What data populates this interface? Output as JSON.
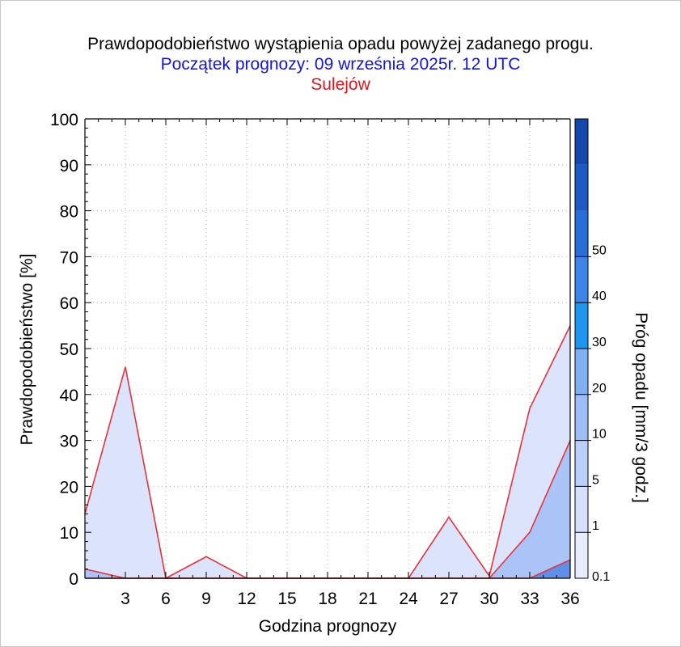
{
  "chart_data": {
    "type": "area",
    "title": "Prawdopodobieństwo wystąpienia opadu powyżej zadanego progu.",
    "subtitle": "Początek prognozy: 09 września 2025r. 12 UTC",
    "location": "Sulejów",
    "xlabel": "Godzina prognozy",
    "ylabel": "Prawdopodobieństwo [%]",
    "colorbar_label": "Próg opadu [mm/3 godz.]",
    "xlim": [
      0,
      36
    ],
    "ylim": [
      0,
      100
    ],
    "x_ticks": [
      3,
      6,
      9,
      12,
      15,
      18,
      21,
      24,
      27,
      30,
      33,
      36
    ],
    "y_ticks": [
      0,
      10,
      20,
      30,
      40,
      50,
      60,
      70,
      80,
      90,
      100
    ],
    "colorbar_ticks": [
      "0.1",
      "1",
      "5",
      "10",
      "20",
      "30",
      "40",
      "50"
    ],
    "colorbar_colors": [
      "#e8ecfc",
      "#d6dffb",
      "#bacffa",
      "#9dbef7",
      "#7fb0f2",
      "#1e96f0",
      "#3c84e8",
      "#286ed7",
      "#1e5ac3",
      "#1448ab"
    ],
    "x": [
      0,
      3,
      6,
      9,
      12,
      15,
      18,
      21,
      24,
      27,
      30,
      33,
      36
    ],
    "series": [
      {
        "threshold": "0.1",
        "color": "#dce4fb",
        "values": [
          14,
          46,
          0,
          4.7,
          0,
          0,
          0,
          0,
          0,
          13.3,
          0.5,
          37,
          55
        ]
      },
      {
        "threshold": "1",
        "color": "#aac4f8",
        "values": [
          2,
          0,
          0,
          0,
          0,
          0,
          0,
          0,
          0,
          0,
          0,
          10,
          30
        ]
      },
      {
        "threshold": "5",
        "color": "#5f8fe8",
        "values": [
          0,
          0,
          0,
          0,
          0,
          0,
          0,
          0,
          0,
          0,
          0,
          0,
          4
        ]
      }
    ],
    "line_color": "#e6323c",
    "grid": true
  }
}
